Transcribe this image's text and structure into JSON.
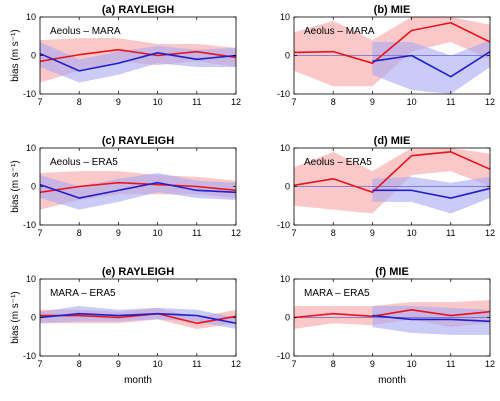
{
  "colors": {
    "red": "#e8141c",
    "blue": "#1f1fcc",
    "red_band": "#f6a3a3",
    "blue_band": "#a9a9f4"
  },
  "chart_data": [
    {
      "type": "line",
      "title": "(a) RAYLEIGH",
      "label": "Aeolus – MARA",
      "xlabel": "",
      "ylabel": "bias (m s⁻¹)",
      "xlim": [
        7,
        12
      ],
      "ylim": [
        -10,
        10
      ],
      "xticks": [
        7,
        8,
        9,
        10,
        11,
        12
      ],
      "yticks": [
        -10,
        0,
        10
      ],
      "zero_line": false,
      "series": [
        {
          "color": "red",
          "x": [
            7,
            8,
            9,
            10,
            11,
            12
          ],
          "y": [
            -1.5,
            0.2,
            1.5,
            0,
            1,
            -0.5
          ],
          "band_low": [
            -7,
            -4,
            -1.5,
            -2.5,
            -1.5,
            -3
          ],
          "band_high": [
            4,
            4.5,
            4.5,
            3,
            3,
            2
          ]
        },
        {
          "color": "blue",
          "x": [
            7,
            8,
            9,
            10,
            11,
            12
          ],
          "y": [
            0.5,
            -4,
            -2,
            0.7,
            -1,
            0
          ],
          "band_low": [
            -3,
            -7,
            -5,
            -2,
            -3,
            -3
          ],
          "band_high": [
            3.5,
            -1,
            1,
            2.5,
            1.5,
            2
          ]
        }
      ]
    },
    {
      "type": "line",
      "title": "(b) MIE",
      "label": "Aeolus – MARA",
      "xlabel": "",
      "ylabel": "",
      "xlim": [
        7,
        12
      ],
      "ylim": [
        -10,
        10
      ],
      "xticks": [
        7,
        8,
        9,
        10,
        11,
        12
      ],
      "yticks": [
        -10,
        0,
        10
      ],
      "zero_line": true,
      "series": [
        {
          "color": "red",
          "x": [
            7,
            8,
            9,
            10,
            11,
            12
          ],
          "y": [
            0.8,
            1,
            -2,
            6.5,
            8.5,
            3.5
          ],
          "band_low": [
            -4,
            -8,
            -8,
            1,
            3.5,
            -1
          ],
          "band_high": [
            6,
            9,
            4,
            10,
            10,
            8
          ]
        },
        {
          "color": "blue",
          "x": [
            9,
            10,
            11,
            12
          ],
          "y": [
            -1.5,
            0,
            -5.5,
            1
          ],
          "band_low": [
            -5,
            -9,
            -10,
            -3
          ],
          "band_high": [
            3.5,
            3.5,
            0,
            4
          ]
        }
      ]
    },
    {
      "type": "line",
      "title": "(c) RAYLEIGH",
      "label": "Aeolus – ERA5",
      "xlabel": "",
      "ylabel": "bias (m s⁻¹)",
      "xlim": [
        7,
        12
      ],
      "ylim": [
        -10,
        10
      ],
      "xticks": [
        7,
        8,
        9,
        10,
        11,
        12
      ],
      "yticks": [
        -10,
        0,
        10
      ],
      "zero_line": false,
      "series": [
        {
          "color": "red",
          "x": [
            7,
            8,
            9,
            10,
            11,
            12
          ],
          "y": [
            -1.5,
            0,
            1,
            0.5,
            0,
            -1
          ],
          "band_low": [
            -6,
            -3.5,
            -2,
            -2,
            -2,
            -3
          ],
          "band_high": [
            3.5,
            4,
            4,
            3,
            2.5,
            1.5
          ]
        },
        {
          "color": "blue",
          "x": [
            7,
            8,
            9,
            10,
            11,
            12
          ],
          "y": [
            0.5,
            -3,
            -1,
            1,
            -1,
            -1.5
          ],
          "band_low": [
            -3,
            -6,
            -4,
            -1.5,
            -3,
            -3.5
          ],
          "band_high": [
            3,
            0,
            2,
            3.5,
            1.5,
            1
          ]
        }
      ]
    },
    {
      "type": "line",
      "title": "(d) MIE",
      "label": "Aeolus – ERA5",
      "xlabel": "",
      "ylabel": "",
      "xlim": [
        7,
        12
      ],
      "ylim": [
        -10,
        10
      ],
      "xticks": [
        7,
        8,
        9,
        10,
        11,
        12
      ],
      "yticks": [
        -10,
        0,
        10
      ],
      "zero_line": true,
      "series": [
        {
          "color": "red",
          "x": [
            7,
            8,
            9,
            10,
            11,
            12
          ],
          "y": [
            0.3,
            2,
            -1.5,
            8,
            9,
            4.5
          ],
          "band_low": [
            -5,
            -6,
            -7,
            3,
            4,
            0
          ],
          "band_high": [
            5,
            9,
            4,
            10,
            10,
            8.5
          ]
        },
        {
          "color": "blue",
          "x": [
            9,
            10,
            11,
            12
          ],
          "y": [
            -1,
            -1,
            -3,
            -0.5
          ],
          "band_low": [
            -4,
            -4,
            -7,
            -3
          ],
          "band_high": [
            2,
            2.5,
            1,
            2.5
          ]
        }
      ]
    },
    {
      "type": "line",
      "title": "(e) RAYLEIGH",
      "label": "MARA – ERA5",
      "xlabel": "month",
      "ylabel": "bias (m s⁻¹)",
      "xlim": [
        7,
        12
      ],
      "ylim": [
        -10,
        10
      ],
      "xticks": [
        7,
        8,
        9,
        10,
        11,
        12
      ],
      "yticks": [
        -10,
        0,
        10
      ],
      "zero_line": false,
      "series": [
        {
          "color": "red",
          "x": [
            7,
            8,
            9,
            10,
            11,
            12
          ],
          "y": [
            0.5,
            0.5,
            0,
            1,
            -1.5,
            0.3
          ],
          "band_low": [
            -1.5,
            -1.5,
            -1.5,
            -0.5,
            -3,
            -1.5
          ],
          "band_high": [
            2,
            2,
            1.5,
            2.5,
            0,
            2
          ]
        },
        {
          "color": "blue",
          "x": [
            7,
            8,
            9,
            10,
            11,
            12
          ],
          "y": [
            0,
            1,
            0.5,
            1,
            0.5,
            -1.5
          ],
          "band_low": [
            -1.5,
            -1,
            -1,
            -0.5,
            -1,
            -3
          ],
          "band_high": [
            1.5,
            3,
            2,
            2.5,
            2,
            0
          ]
        }
      ]
    },
    {
      "type": "line",
      "title": "(f) MIE",
      "label": "MARA – ERA5",
      "xlabel": "month",
      "ylabel": "",
      "xlim": [
        7,
        12
      ],
      "ylim": [
        -10,
        10
      ],
      "xticks": [
        7,
        8,
        9,
        10,
        11,
        12
      ],
      "yticks": [
        -10,
        0,
        10
      ],
      "zero_line": true,
      "series": [
        {
          "color": "red",
          "x": [
            7,
            8,
            9,
            10,
            11,
            12
          ],
          "y": [
            0,
            1,
            0.3,
            2,
            0.5,
            1.5
          ],
          "band_low": [
            -3,
            -1.5,
            -2,
            -0.5,
            -2.5,
            -1.5
          ],
          "band_high": [
            3,
            3,
            3,
            4,
            4,
            4.5
          ]
        },
        {
          "color": "blue",
          "x": [
            9,
            10,
            11,
            12
          ],
          "y": [
            0.5,
            -0.5,
            -0.5,
            -1
          ],
          "band_low": [
            -2.5,
            -4,
            -4.5,
            -4.5
          ],
          "band_high": [
            3,
            3,
            2.5,
            2
          ]
        }
      ]
    }
  ]
}
